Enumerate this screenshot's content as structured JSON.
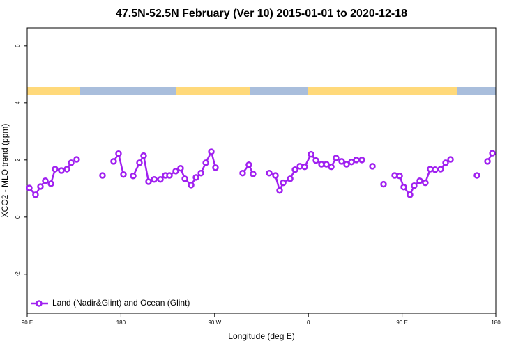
{
  "chart_data": {
    "type": "line",
    "title": "47.5N-52.5N February (Ver 10)   2015-01-01 to 2020-12-18",
    "xlabel": "Longitude (deg E)",
    "ylabel": "XCO2 - MLO trend (ppm)",
    "xlim": [
      90,
      540
    ],
    "ylim": [
      -3.37,
      6.63
    ],
    "xticks": [
      {
        "value": 90,
        "label": "90 E"
      },
      180,
      {
        "value": 270,
        "label": "90 W"
      },
      {
        "value": 360,
        "label": "0"
      },
      {
        "value": 450,
        "label": "90 E"
      },
      {
        "value": 540,
        "label": "180"
      }
    ],
    "yticks": [
      -2,
      0,
      2,
      4,
      6
    ],
    "legend": "bottom-left",
    "x": [
      92.0,
      98.0,
      102.7,
      107.4,
      112.8,
      116.8,
      122.8,
      128.2,
      132.2,
      137.5,
      null,
      162.3,
      null,
      173.0,
      177.7,
      182.4,
      null,
      191.8,
      197.8,
      201.8,
      206.5,
      211.9,
      217.9,
      222.6,
      226.6,
      232.6,
      237.3,
      241.4,
      247.4,
      252.1,
      256.8,
      261.5,
      266.8,
      270.8,
      null,
      296.9,
      302.9,
      306.9,
      null,
      322.4,
      328.4,
      332.4,
      335.8,
      342.5,
      347.2,
      351.9,
      356.5,
      362.6,
      367.3,
      372.6,
      377.3,
      382.0,
      386.6,
      392.0,
      396.7,
      401.4,
      406.1,
      411.4,
      null,
      421.5,
      null,
      432.2,
      null,
      442.9,
      447.6,
      451.6,
      457.6,
      461.6,
      467.0,
      472.3,
      477.0,
      481.7,
      487.1,
      491.8,
      496.5,
      null,
      521.9,
      null,
      532.0,
      536.7
    ],
    "series": [
      {
        "name": "Land (Nadir&Glint) and Ocean (Glint)",
        "color": "#a020f0",
        "values": [
          1.02,
          0.78,
          1.07,
          1.27,
          1.17,
          1.68,
          1.63,
          1.68,
          1.9,
          2.02,
          null,
          1.46,
          null,
          1.95,
          2.22,
          1.49,
          null,
          1.44,
          1.9,
          2.15,
          1.24,
          1.32,
          1.32,
          1.46,
          1.46,
          1.61,
          1.71,
          1.34,
          1.12,
          1.39,
          1.54,
          1.9,
          2.29,
          1.73,
          null,
          1.54,
          1.83,
          1.51,
          null,
          1.54,
          1.46,
          0.93,
          1.2,
          1.34,
          1.66,
          1.78,
          1.76,
          2.2,
          1.98,
          1.85,
          1.85,
          1.76,
          2.07,
          1.95,
          1.85,
          1.93,
          2.0,
          2.0,
          null,
          1.78,
          null,
          1.15,
          null,
          1.46,
          1.44,
          1.05,
          0.78,
          1.1,
          1.27,
          1.2,
          1.68,
          1.66,
          1.68,
          1.9,
          2.02,
          null,
          1.46,
          null,
          1.95,
          2.24
        ]
      }
    ]
  }
}
